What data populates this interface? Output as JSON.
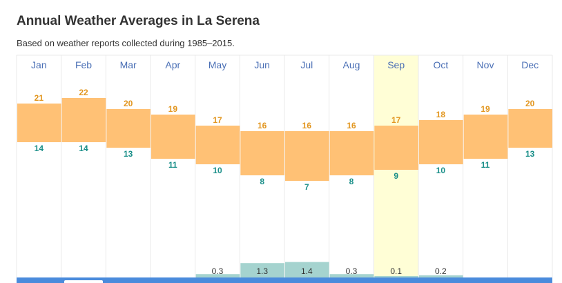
{
  "title": "Annual Weather Averages in La Serena",
  "subtitle": "Based on weather reports collected during 1985–2015.",
  "colors": {
    "temp_band": "#ffc175",
    "high_label": "#e2961f",
    "low_label": "#1a8f89",
    "precip_bar": "#a5d3cf",
    "highlight": "#fffed6",
    "grid": "#e9e9e9",
    "bottom_bar": "#4a8bdc"
  },
  "chart_data": {
    "type": "bar",
    "categories": [
      "Jan",
      "Feb",
      "Mar",
      "Apr",
      "May",
      "Jun",
      "Jul",
      "Aug",
      "Sep",
      "Oct",
      "Nov",
      "Dec"
    ],
    "series": [
      {
        "values": [
          21,
          22,
          20,
          19,
          17,
          16,
          16,
          16,
          17,
          18,
          19,
          20
        ]
      },
      {
        "values": [
          14,
          14,
          13,
          11,
          10,
          8,
          7,
          8,
          9,
          10,
          11,
          13
        ]
      },
      {
        "values": [
          null,
          null,
          null,
          null,
          0.3,
          1.3,
          1.4,
          0.3,
          0.1,
          0.2,
          null,
          null
        ]
      }
    ],
    "highlighted_category": "Sep"
  }
}
